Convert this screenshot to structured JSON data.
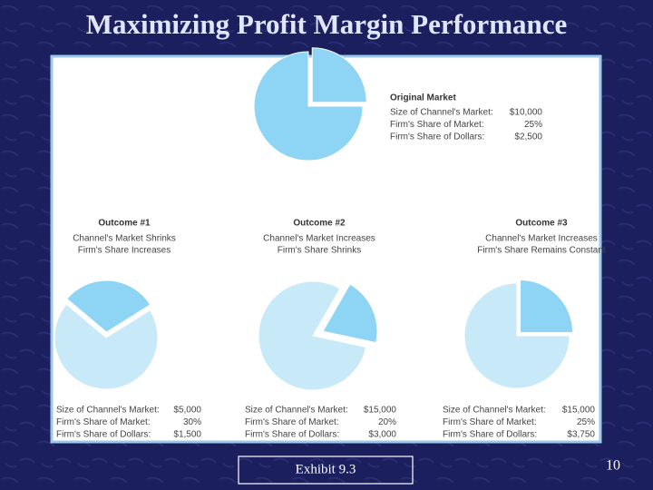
{
  "title": "Maximizing Profit Margin Performance",
  "panels": [
    {
      "title": "Original Market",
      "subtitle": [],
      "rows": [
        {
          "label": "Size of Channel's Market:",
          "value": "$10,000"
        },
        {
          "label": "Firm's Share of Market:",
          "value": "25%"
        },
        {
          "label": "Firm's Share of Dollars:",
          "value": "$2,500"
        }
      ],
      "share": 25
    },
    {
      "title": "Outcome #1",
      "subtitle": [
        "Channel's Market Shrinks",
        "Firm's Share Increases"
      ],
      "rows": [
        {
          "label": "Size of Channel's Market:",
          "value": "$5,000"
        },
        {
          "label": "Firm's Share of Market:",
          "value": "30%"
        },
        {
          "label": "Firm's Share of Dollars:",
          "value": "$1,500"
        }
      ],
      "share": 30
    },
    {
      "title": "Outcome #2",
      "subtitle": [
        "Channel's Market Increases",
        "Firm's Share Shrinks"
      ],
      "rows": [
        {
          "label": "Size of Channel's Market:",
          "value": "$15,000"
        },
        {
          "label": "Firm's Share of Market:",
          "value": "20%"
        },
        {
          "label": "Firm's Share of Dollars:",
          "value": "$3,000"
        }
      ],
      "share": 20
    },
    {
      "title": "Outcome #3",
      "subtitle": [
        "Channel's Market Increases",
        "Firm's Share Remains Constant"
      ],
      "rows": [
        {
          "label": "Size of Channel's Market:",
          "value": "$15,000"
        },
        {
          "label": "Firm's Share of Market:",
          "value": "25%"
        },
        {
          "label": "Firm's Share of Dollars:",
          "value": "$3,750"
        }
      ],
      "share": 25
    }
  ],
  "caption": "Exhibit 9.3",
  "page_number": "10"
}
